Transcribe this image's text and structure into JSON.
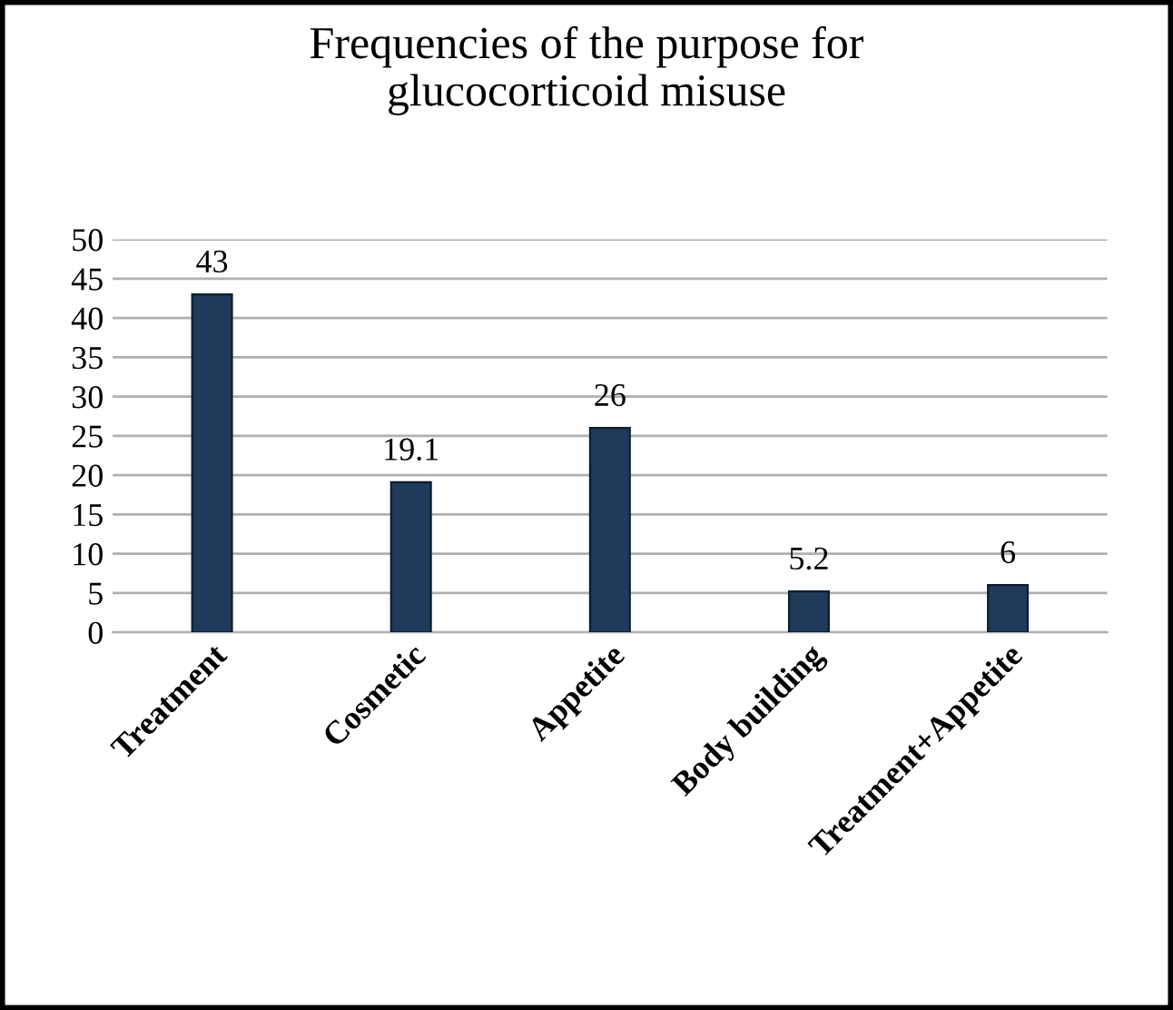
{
  "chart_data": {
    "type": "bar",
    "title": "Frequencies of the purpose for\nglucocorticoid misuse",
    "categories": [
      "Treatment",
      "Cosmetic",
      "Appetite",
      "Body building",
      "Treatment+Appetite"
    ],
    "values": [
      43,
      19.1,
      26,
      5.2,
      6
    ],
    "color": "#1f3a5a",
    "ylim": [
      0,
      50
    ],
    "yticks": [
      0,
      5,
      10,
      15,
      20,
      25,
      30,
      35,
      40,
      45,
      50
    ],
    "grid": "y",
    "data_labels": true
  }
}
